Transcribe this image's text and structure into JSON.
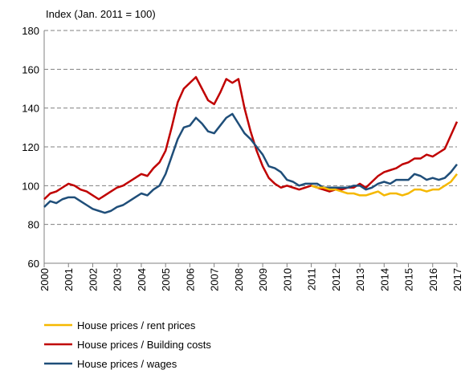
{
  "chart_data": {
    "type": "line",
    "y_axis_label": "Index (Jan. 2011 = 100)",
    "x": [
      2000,
      2000.25,
      2000.5,
      2000.75,
      2001,
      2001.25,
      2001.5,
      2001.75,
      2002,
      2002.25,
      2002.5,
      2002.75,
      2003,
      2003.25,
      2003.5,
      2003.75,
      2004,
      2004.25,
      2004.5,
      2004.75,
      2005,
      2005.25,
      2005.5,
      2005.75,
      2006,
      2006.25,
      2006.5,
      2006.75,
      2007,
      2007.25,
      2007.5,
      2007.75,
      2008,
      2008.25,
      2008.5,
      2008.75,
      2009,
      2009.25,
      2009.5,
      2009.75,
      2010,
      2010.25,
      2010.5,
      2010.75,
      2011,
      2011.25,
      2011.5,
      2011.75,
      2012,
      2012.25,
      2012.5,
      2012.75,
      2013,
      2013.25,
      2013.5,
      2013.75,
      2014,
      2014.25,
      2014.5,
      2014.75,
      2015,
      2015.25,
      2015.5,
      2015.75,
      2016,
      2016.25,
      2016.5,
      2016.75,
      2017
    ],
    "series": [
      {
        "name": "House prices / rent prices",
        "color": "#f5b800",
        "values": [
          null,
          null,
          null,
          null,
          null,
          null,
          null,
          null,
          null,
          null,
          null,
          null,
          null,
          null,
          null,
          null,
          null,
          null,
          null,
          null,
          null,
          null,
          null,
          null,
          null,
          null,
          null,
          null,
          null,
          null,
          null,
          null,
          null,
          null,
          null,
          null,
          null,
          null,
          null,
          null,
          null,
          null,
          null,
          null,
          100,
          99,
          99,
          98,
          98,
          97,
          96,
          96,
          95,
          95,
          96,
          97,
          95,
          96,
          96,
          95,
          96,
          98,
          98,
          97,
          98,
          98,
          100,
          102,
          106
        ]
      },
      {
        "name": "House prices / Building costs",
        "color": "#c00000",
        "values": [
          93,
          96,
          97,
          99,
          101,
          100,
          98,
          97,
          95,
          93,
          95,
          97,
          99,
          100,
          102,
          104,
          106,
          105,
          109,
          112,
          118,
          130,
          143,
          150,
          153,
          156,
          150,
          144,
          142,
          148,
          155,
          153,
          155,
          140,
          128,
          118,
          110,
          104,
          101,
          99,
          100,
          99,
          98,
          99,
          100,
          99,
          98,
          97,
          98,
          98,
          99,
          99,
          101,
          99,
          102,
          105,
          107,
          108,
          109,
          111,
          112,
          114,
          114,
          116,
          115,
          117,
          119,
          126,
          133
        ]
      },
      {
        "name": "House prices / wages",
        "color": "#1f4e79",
        "values": [
          89,
          92,
          91,
          93,
          94,
          94,
          92,
          90,
          88,
          87,
          86,
          87,
          89,
          90,
          92,
          94,
          96,
          95,
          98,
          100,
          106,
          115,
          124,
          130,
          131,
          135,
          132,
          128,
          127,
          131,
          135,
          137,
          132,
          127,
          124,
          120,
          116,
          110,
          109,
          107,
          103,
          102,
          100,
          101,
          101,
          101,
          99,
          99,
          99,
          99,
          99,
          100,
          100,
          98,
          99,
          101,
          102,
          101,
          103,
          103,
          103,
          106,
          105,
          103,
          104,
          103,
          104,
          107,
          111
        ]
      }
    ],
    "xlim": [
      2000,
      2017
    ],
    "xticks": [
      2000,
      2001,
      2002,
      2003,
      2004,
      2005,
      2006,
      2007,
      2008,
      2009,
      2010,
      2011,
      2012,
      2013,
      2014,
      2015,
      2016,
      2017
    ],
    "ylim": [
      60,
      180
    ],
    "yticks": [
      60,
      80,
      100,
      120,
      140,
      160,
      180
    ],
    "grid": true
  }
}
